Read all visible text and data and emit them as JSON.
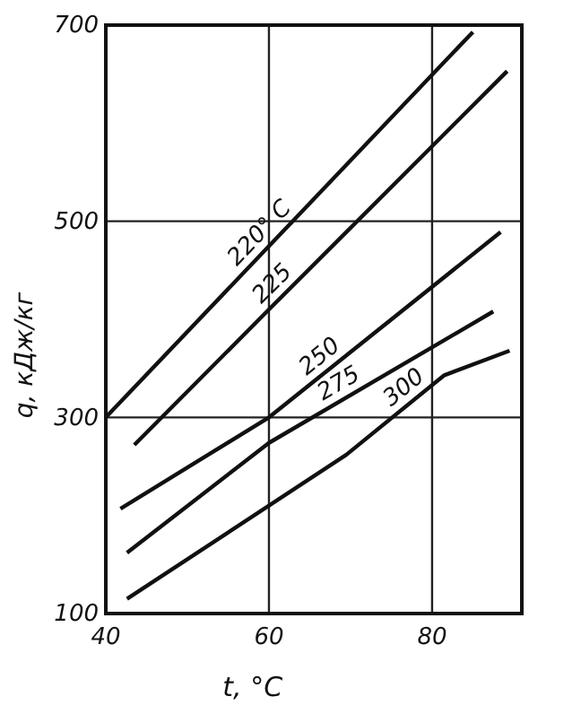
{
  "chart_data": {
    "type": "line",
    "xlabel": "t, °C",
    "ylabel": "q, кДж/кг",
    "xlim": [
      40,
      91
    ],
    "ylim": [
      100,
      700
    ],
    "xticks": [
      40,
      60,
      80
    ],
    "yticks": [
      100,
      300,
      500,
      700
    ],
    "grid": true,
    "marker": "none",
    "line_style": "solid",
    "series": [
      {
        "name": "220° C",
        "color": "#111111",
        "x": [
          40,
          62.9,
          85
        ],
        "values": [
          300,
          500,
          693
        ]
      },
      {
        "name": "225",
        "color": "#111111",
        "x": [
          43.5,
          60,
          89.2
        ],
        "values": [
          272,
          410,
          653
        ]
      },
      {
        "name": "250",
        "color": "#111111",
        "x": [
          41.8,
          60,
          88.4
        ],
        "values": [
          207,
          300,
          489
        ]
      },
      {
        "name": "275",
        "color": "#111111",
        "x": [
          42.6,
          60,
          87.5
        ],
        "values": [
          162,
          274,
          408
        ]
      },
      {
        "name": "300",
        "color": "#111111",
        "x": [
          42.6,
          69.5,
          81.5,
          89.5
        ],
        "values": [
          115,
          262,
          343,
          368
        ]
      }
    ]
  }
}
